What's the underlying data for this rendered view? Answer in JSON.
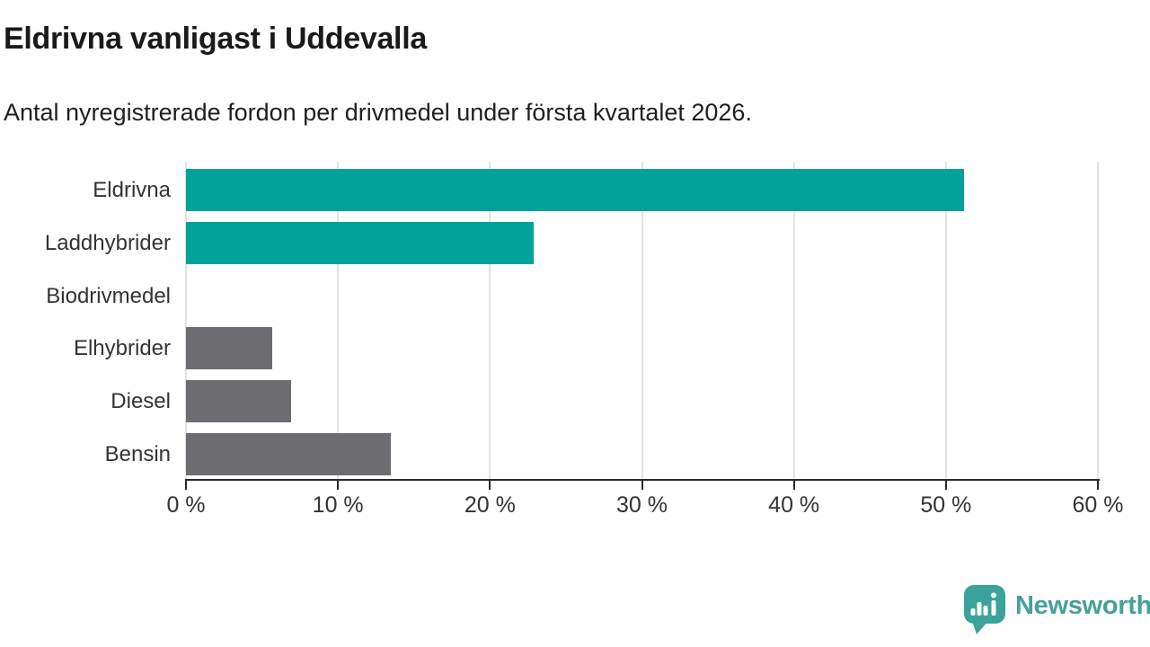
{
  "chart_data": {
    "type": "bar",
    "orientation": "horizontal",
    "title": "Eldrivna vanligast i Uddevalla",
    "subtitle": "Antal nyregistrerade fordon per drivmedel under första kvartalet 2026.",
    "categories": [
      "Eldrivna",
      "Laddhybrider",
      "Biodrivmedel",
      "Elhybrider",
      "Diesel",
      "Bensin"
    ],
    "values": [
      51.2,
      22.9,
      0,
      5.7,
      6.9,
      13.5
    ],
    "unit": "%",
    "bar_colors": [
      "#00A29A",
      "#00A29A",
      "#6C6C71",
      "#6C6C71",
      "#6C6C71",
      "#6C6C71"
    ],
    "x_axis": {
      "range": [
        0,
        60
      ],
      "ticks": [
        {
          "value": 0,
          "label": "0 %"
        },
        {
          "value": 10,
          "label": "10 %"
        },
        {
          "value": 20,
          "label": "20 %"
        },
        {
          "value": 30,
          "label": "30 %"
        },
        {
          "value": 40,
          "label": "40 %"
        },
        {
          "value": 50,
          "label": "50 %"
        },
        {
          "value": 60,
          "label": "60 %"
        }
      ],
      "gridlines": true
    },
    "legend": "none"
  },
  "colors": {
    "background": "#FFFFFF",
    "highlight": "#00A29A",
    "neutral": "#6C6C71",
    "axis": "#2B2B2B",
    "gridline": "#E3E3E3",
    "label_text": "#333333",
    "title_text": "#1A1A1A"
  },
  "branding": {
    "wordmark": "Newsworthy",
    "wordmark_color": "#46A09B",
    "icon_color": "#3BA39B",
    "icon_name": "newsworthy-speech-bubble-chart-icon"
  }
}
